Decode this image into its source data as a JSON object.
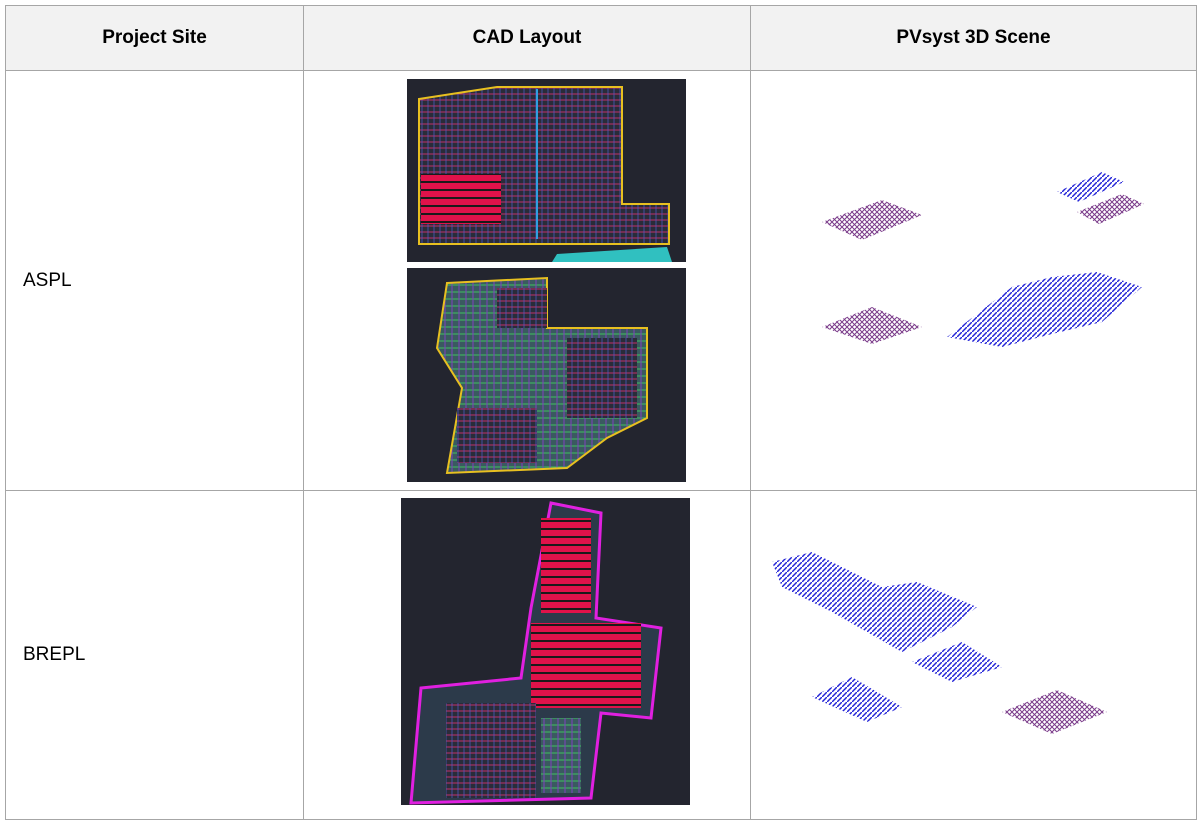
{
  "table": {
    "header": [
      "Project Site",
      "CAD Layout",
      "PVsyst 3D Scene"
    ],
    "rows": [
      [
        "ASPL"
      ],
      [
        "BREPL"
      ]
    ]
  }
}
